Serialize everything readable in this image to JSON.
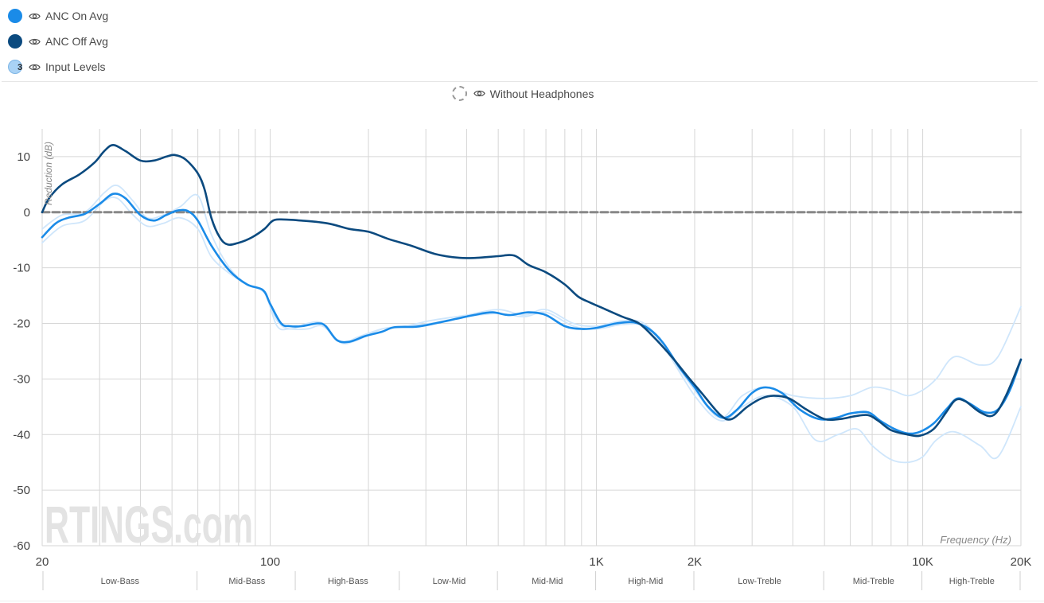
{
  "legend": {
    "items": [
      {
        "label": "ANC On Avg",
        "color": "#1a8be8"
      },
      {
        "label": "ANC Off Avg",
        "color": "#0b4a7f"
      },
      {
        "label": "Input Levels",
        "color": "#a9d2f5",
        "badge": "3"
      }
    ],
    "reference": {
      "label": "Without Headphones"
    }
  },
  "watermark": "RTINGS.com",
  "chart_data": {
    "type": "line",
    "xlabel": "Frequency (Hz)",
    "ylabel": "Reduction (dB)",
    "xscale": "log",
    "xlim": [
      20,
      20000
    ],
    "ylim": [
      -60,
      15
    ],
    "x_ticks": [
      {
        "value": 20,
        "label": "20"
      },
      {
        "value": 100,
        "label": "100"
      },
      {
        "value": 1000,
        "label": "1K"
      },
      {
        "value": 2000,
        "label": "2K"
      },
      {
        "value": 10000,
        "label": "10K"
      },
      {
        "value": 20000,
        "label": "20K"
      }
    ],
    "y_ticks": [
      {
        "value": 10,
        "label": "10"
      },
      {
        "value": 0,
        "label": "0"
      },
      {
        "value": -10,
        "label": "-10"
      },
      {
        "value": -20,
        "label": "-20"
      },
      {
        "value": -30,
        "label": "-30"
      },
      {
        "value": -40,
        "label": "-40"
      },
      {
        "value": -50,
        "label": "-50"
      },
      {
        "value": -60,
        "label": "-60"
      }
    ],
    "bands": [
      {
        "label": "Low-Bass",
        "from": 20,
        "to": 60
      },
      {
        "label": "Mid-Bass",
        "from": 60,
        "to": 120
      },
      {
        "label": "High-Bass",
        "from": 120,
        "to": 250
      },
      {
        "label": "Low-Mid",
        "from": 250,
        "to": 500
      },
      {
        "label": "Mid-Mid",
        "from": 500,
        "to": 1000
      },
      {
        "label": "High-Mid",
        "from": 1000,
        "to": 2000
      },
      {
        "label": "Low-Treble",
        "from": 2000,
        "to": 5000
      },
      {
        "label": "Mid-Treble",
        "from": 5000,
        "to": 10000
      },
      {
        "label": "High-Treble",
        "from": 10000,
        "to": 20000
      }
    ],
    "series": [
      {
        "name": "Input Levels (upper)",
        "color": "#cfe6fb",
        "width": 1.8,
        "points": [
          [
            20,
            -3
          ],
          [
            23,
            -0.5
          ],
          [
            27,
            0
          ],
          [
            31,
            3.5
          ],
          [
            34,
            4.8
          ],
          [
            38,
            2
          ],
          [
            42,
            -1
          ],
          [
            47,
            -0.5
          ],
          [
            53,
            1
          ],
          [
            60,
            3
          ],
          [
            66,
            -4
          ],
          [
            75,
            -10
          ],
          [
            85,
            -13
          ],
          [
            96,
            -14.5
          ],
          [
            105,
            -19.5
          ],
          [
            115,
            -21
          ],
          [
            130,
            -20
          ],
          [
            145,
            -20
          ],
          [
            165,
            -23.5
          ],
          [
            185,
            -22.5
          ],
          [
            220,
            -21
          ],
          [
            260,
            -20.5
          ],
          [
            310,
            -19.5
          ],
          [
            400,
            -18.5
          ],
          [
            500,
            -17.5
          ],
          [
            600,
            -18.5
          ],
          [
            700,
            -17.5
          ],
          [
            850,
            -20
          ],
          [
            1000,
            -20.5
          ],
          [
            1200,
            -19.5
          ],
          [
            1400,
            -20
          ],
          [
            1600,
            -24
          ],
          [
            2000,
            -32
          ],
          [
            2400,
            -37
          ],
          [
            2800,
            -33
          ],
          [
            3300,
            -31.5
          ],
          [
            4000,
            -33
          ],
          [
            5000,
            -33.5
          ],
          [
            6000,
            -33
          ],
          [
            7000,
            -31.5
          ],
          [
            8000,
            -32
          ],
          [
            9000,
            -33
          ],
          [
            10000,
            -32
          ],
          [
            11000,
            -30
          ],
          [
            12500,
            -26
          ],
          [
            15000,
            -27.5
          ],
          [
            17000,
            -26
          ],
          [
            20000,
            -17
          ]
        ]
      },
      {
        "name": "Input Levels (lower)",
        "color": "#cfe6fb",
        "width": 1.8,
        "points": [
          [
            20,
            -5.5
          ],
          [
            23,
            -2.5
          ],
          [
            27,
            -1.5
          ],
          [
            31,
            2
          ],
          [
            34,
            2.5
          ],
          [
            38,
            -0.5
          ],
          [
            42,
            -2.5
          ],
          [
            47,
            -2
          ],
          [
            53,
            -1
          ],
          [
            60,
            -3
          ],
          [
            66,
            -8
          ],
          [
            75,
            -11
          ],
          [
            85,
            -13
          ],
          [
            96,
            -14.5
          ],
          [
            105,
            -20.5
          ],
          [
            115,
            -21
          ],
          [
            130,
            -21
          ],
          [
            145,
            -20.5
          ],
          [
            165,
            -23.5
          ],
          [
            185,
            -23
          ],
          [
            220,
            -21
          ],
          [
            260,
            -20.5
          ],
          [
            310,
            -20
          ],
          [
            400,
            -18.8
          ],
          [
            500,
            -18.2
          ],
          [
            600,
            -18.8
          ],
          [
            700,
            -18
          ],
          [
            850,
            -20.5
          ],
          [
            1000,
            -21
          ],
          [
            1200,
            -20.2
          ],
          [
            1400,
            -20.5
          ],
          [
            1600,
            -24
          ],
          [
            2000,
            -33
          ],
          [
            2400,
            -37.5
          ],
          [
            2800,
            -35
          ],
          [
            3300,
            -33
          ],
          [
            4000,
            -35
          ],
          [
            4700,
            -41
          ],
          [
            5500,
            -40
          ],
          [
            6300,
            -39
          ],
          [
            7000,
            -42
          ],
          [
            8000,
            -44.5
          ],
          [
            9000,
            -45
          ],
          [
            10000,
            -44
          ],
          [
            11000,
            -41
          ],
          [
            12500,
            -39.5
          ],
          [
            15000,
            -42
          ],
          [
            17000,
            -44
          ],
          [
            20000,
            -35
          ]
        ]
      },
      {
        "name": "Without Headphones",
        "color": "#888888",
        "width": 3,
        "dashed": true,
        "points": [
          [
            20,
            0
          ],
          [
            20000,
            0
          ]
        ]
      },
      {
        "name": "ANC On Avg",
        "color": "#1a8be8",
        "width": 2.6,
        "points": [
          [
            20,
            -4.5
          ],
          [
            22,
            -2
          ],
          [
            24,
            -1
          ],
          [
            27,
            -0.3
          ],
          [
            30,
            1.5
          ],
          [
            33,
            3.3
          ],
          [
            36,
            2.5
          ],
          [
            40,
            -0.5
          ],
          [
            44,
            -1.5
          ],
          [
            48,
            -0.5
          ],
          [
            52,
            0.3
          ],
          [
            56,
            0.2
          ],
          [
            60,
            -1.5
          ],
          [
            66,
            -6
          ],
          [
            75,
            -10.5
          ],
          [
            85,
            -13
          ],
          [
            95,
            -14
          ],
          [
            100,
            -16.5
          ],
          [
            108,
            -20
          ],
          [
            115,
            -20.5
          ],
          [
            125,
            -20.5
          ],
          [
            140,
            -20
          ],
          [
            148,
            -20.5
          ],
          [
            160,
            -23
          ],
          [
            175,
            -23.3
          ],
          [
            195,
            -22.3
          ],
          [
            220,
            -21.5
          ],
          [
            240,
            -20.7
          ],
          [
            280,
            -20.6
          ],
          [
            320,
            -20
          ],
          [
            370,
            -19.2
          ],
          [
            420,
            -18.5
          ],
          [
            480,
            -18
          ],
          [
            540,
            -18.5
          ],
          [
            620,
            -18
          ],
          [
            700,
            -18.5
          ],
          [
            800,
            -20.5
          ],
          [
            900,
            -21
          ],
          [
            1000,
            -20.8
          ],
          [
            1150,
            -20
          ],
          [
            1300,
            -19.8
          ],
          [
            1450,
            -21
          ],
          [
            1600,
            -23.5
          ],
          [
            1800,
            -28
          ],
          [
            2000,
            -31.5
          ],
          [
            2200,
            -35
          ],
          [
            2450,
            -37
          ],
          [
            2700,
            -35.5
          ],
          [
            3000,
            -32.5
          ],
          [
            3300,
            -31.5
          ],
          [
            3700,
            -32.5
          ],
          [
            4200,
            -35.5
          ],
          [
            4800,
            -37.2
          ],
          [
            5400,
            -37
          ],
          [
            6000,
            -36.2
          ],
          [
            6800,
            -36
          ],
          [
            7400,
            -37.5
          ],
          [
            8200,
            -39
          ],
          [
            9000,
            -39.8
          ],
          [
            9800,
            -39.5
          ],
          [
            10800,
            -38
          ],
          [
            11800,
            -35.5
          ],
          [
            12800,
            -33.5
          ],
          [
            14000,
            -34.5
          ],
          [
            15500,
            -36
          ],
          [
            17000,
            -35.5
          ],
          [
            18500,
            -32
          ],
          [
            20000,
            -26.5
          ]
        ]
      },
      {
        "name": "ANC Off Avg",
        "color": "#0b4a7f",
        "width": 2.6,
        "points": [
          [
            20,
            0
          ],
          [
            21,
            2.5
          ],
          [
            23,
            5
          ],
          [
            26,
            6.8
          ],
          [
            29,
            9
          ],
          [
            31,
            11
          ],
          [
            33,
            12.1
          ],
          [
            36,
            11
          ],
          [
            40,
            9.3
          ],
          [
            44,
            9.3
          ],
          [
            48,
            10
          ],
          [
            51,
            10.3
          ],
          [
            55,
            9.5
          ],
          [
            60,
            7
          ],
          [
            63,
            4
          ],
          [
            66,
            -1
          ],
          [
            70,
            -4.5
          ],
          [
            74,
            -5.8
          ],
          [
            80,
            -5.5
          ],
          [
            88,
            -4.5
          ],
          [
            96,
            -3
          ],
          [
            102,
            -1.5
          ],
          [
            110,
            -1.3
          ],
          [
            125,
            -1.5
          ],
          [
            150,
            -2
          ],
          [
            175,
            -3
          ],
          [
            200,
            -3.5
          ],
          [
            230,
            -4.8
          ],
          [
            270,
            -6
          ],
          [
            320,
            -7.5
          ],
          [
            380,
            -8.2
          ],
          [
            430,
            -8.2
          ],
          [
            500,
            -7.9
          ],
          [
            560,
            -7.8
          ],
          [
            620,
            -9.5
          ],
          [
            700,
            -10.8
          ],
          [
            800,
            -13
          ],
          [
            880,
            -15.2
          ],
          [
            960,
            -16.3
          ],
          [
            1050,
            -17.3
          ],
          [
            1200,
            -18.8
          ],
          [
            1350,
            -20
          ],
          [
            1500,
            -22.5
          ],
          [
            1700,
            -26
          ],
          [
            1900,
            -29.5
          ],
          [
            2100,
            -32.5
          ],
          [
            2400,
            -36.5
          ],
          [
            2600,
            -37.2
          ],
          [
            2900,
            -35
          ],
          [
            3200,
            -33.5
          ],
          [
            3500,
            -33
          ],
          [
            3900,
            -33.5
          ],
          [
            4400,
            -35.5
          ],
          [
            5000,
            -37.2
          ],
          [
            5600,
            -37.2
          ],
          [
            6200,
            -36.7
          ],
          [
            6800,
            -36.5
          ],
          [
            7300,
            -37.5
          ],
          [
            8000,
            -39.2
          ],
          [
            9000,
            -40
          ],
          [
            9800,
            -40.2
          ],
          [
            10800,
            -39
          ],
          [
            11800,
            -36
          ],
          [
            12600,
            -33.8
          ],
          [
            13500,
            -34
          ],
          [
            15000,
            -36
          ],
          [
            16500,
            -36.5
          ],
          [
            18000,
            -33
          ],
          [
            20000,
            -26.5
          ]
        ]
      }
    ]
  }
}
